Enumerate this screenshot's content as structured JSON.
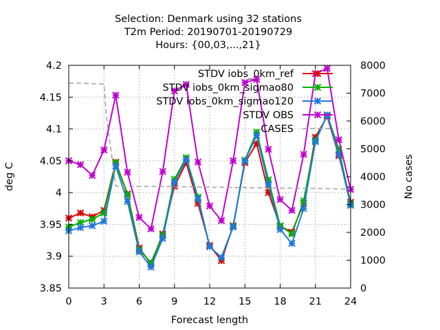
{
  "chart_data": {
    "type": "line",
    "title_lines": [
      "Selection: Denmark using    32 stations",
      "T2m   Period: 20190701-20190729",
      "Hours: {00,03,...,21}"
    ],
    "xlabel": "Forecast length",
    "ylabel": "deg C",
    "y2label": "No cases",
    "xlim": [
      0,
      24
    ],
    "ylim": [
      3.85,
      4.2
    ],
    "y2lim": [
      0,
      8000
    ],
    "xticks": [
      0,
      3,
      6,
      9,
      12,
      15,
      18,
      21,
      24
    ],
    "yticks": [
      3.85,
      3.9,
      3.95,
      4,
      4.05,
      4.1,
      4.15,
      4.2
    ],
    "ytick_labels": [
      "3.85",
      "3.9",
      "3.95",
      "4",
      "4.05",
      "4.1",
      "4.15",
      "4.2"
    ],
    "y2ticks": [
      0,
      1000,
      2000,
      3000,
      4000,
      5000,
      6000,
      7000,
      8000
    ],
    "grid": true,
    "legend_position": "top-right",
    "x": [
      0,
      1,
      2,
      3,
      4,
      5,
      6,
      7,
      8,
      9,
      10,
      11,
      12,
      13,
      14,
      15,
      16,
      17,
      18,
      19,
      20,
      21,
      22,
      23,
      24
    ],
    "series": [
      {
        "name": "STDV iobs_0km_ref",
        "color": "#e00000",
        "axis": "y",
        "values": [
          3.96,
          3.968,
          3.962,
          3.972,
          4.048,
          3.998,
          3.913,
          3.888,
          3.935,
          4.01,
          4.047,
          3.983,
          3.917,
          3.893,
          3.948,
          4.047,
          4.077,
          4.0,
          3.947,
          3.938,
          3.983,
          4.087,
          4.12,
          4.058,
          3.985
        ]
      },
      {
        "name": "STDV iobs_0km_sigmao80",
        "color": "#00b000",
        "axis": "y",
        "values": [
          3.946,
          3.953,
          3.958,
          3.968,
          4.047,
          3.997,
          3.91,
          3.89,
          3.933,
          4.021,
          4.055,
          3.993,
          3.915,
          3.898,
          3.947,
          4.051,
          4.095,
          4.02,
          3.948,
          3.935,
          3.987,
          4.082,
          4.122,
          4.068,
          3.982
        ]
      },
      {
        "name": "STDV iobs_0km_sigmao120",
        "color": "#1f77e0",
        "axis": "y",
        "values": [
          3.94,
          3.945,
          3.948,
          3.955,
          4.042,
          3.986,
          3.907,
          3.883,
          3.928,
          4.016,
          4.052,
          3.99,
          3.915,
          3.898,
          3.946,
          4.05,
          4.09,
          4.013,
          3.942,
          3.92,
          3.975,
          4.08,
          4.122,
          4.06,
          3.98
        ]
      },
      {
        "name": "STDV OBS",
        "color": "#c000d0",
        "axis": "y",
        "values": [
          4.05,
          4.044,
          4.027,
          4.067,
          4.153,
          4.032,
          3.961,
          3.943,
          4.033,
          4.16,
          4.17,
          4.048,
          3.979,
          3.956,
          4.05,
          4.173,
          4.178,
          4.068,
          3.989,
          3.972,
          4.06,
          4.187,
          4.195,
          4.083,
          4.005
        ]
      },
      {
        "name": "CASES",
        "color": "#a0a0a0",
        "axis": "y2",
        "dashed": true,
        "x": [
          0,
          1,
          2,
          3,
          3.2,
          4,
          5,
          6,
          7,
          8,
          9,
          10,
          11,
          12,
          13,
          14,
          15,
          16,
          17,
          18,
          19,
          20,
          21,
          22,
          23,
          24
        ],
        "values": [
          7360,
          7360,
          7340,
          7330,
          6200,
          3660,
          3660,
          3650,
          3650,
          3650,
          3640,
          3640,
          3630,
          3620,
          3620,
          3610,
          3610,
          3600,
          3600,
          3590,
          3590,
          3580,
          3580,
          3570,
          3560,
          3550
        ]
      }
    ]
  }
}
